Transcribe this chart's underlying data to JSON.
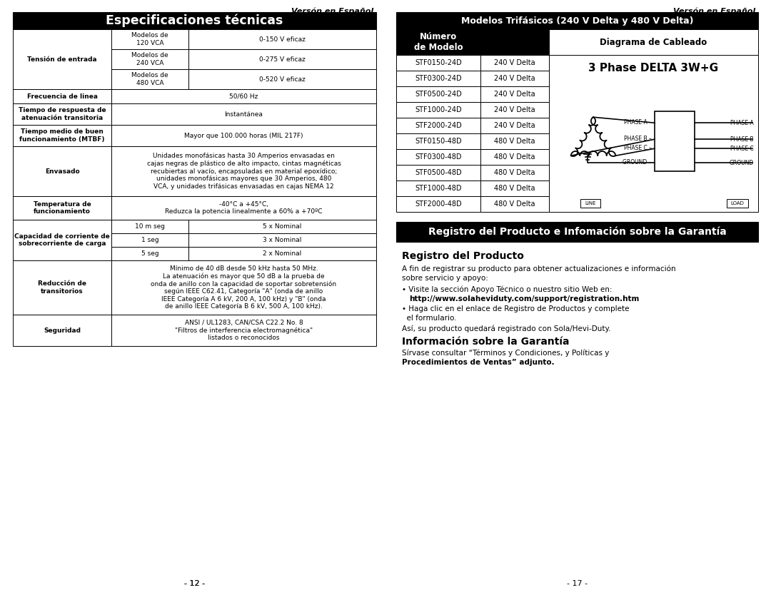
{
  "page_bg": "#ffffff",
  "left_header_italic": "Versón en Español",
  "right_header_italic": "Versón en Español",
  "left_title": "Especificaciones técnicas",
  "right_table_title": "Modelos Trifásicos (240 V Delta y 480 V Delta)",
  "right_col1_header": "Número\nde Modelo",
  "right_col3_header": "Diagrama de Cableado",
  "right_table_rows": [
    [
      "STF0150-24D",
      "240 V Delta"
    ],
    [
      "STF0300-24D",
      "240 V Delta"
    ],
    [
      "STF0500-24D",
      "240 V Delta"
    ],
    [
      "STF1000-24D",
      "240 V Delta"
    ],
    [
      "STF2000-24D",
      "240 V Delta"
    ],
    [
      "STF0150-48D",
      "480 V Delta"
    ],
    [
      "STF0300-48D",
      "480 V Delta"
    ],
    [
      "STF0500-48D",
      "480 V Delta"
    ],
    [
      "STF1000-48D",
      "480 V Delta"
    ],
    [
      "STF2000-48D",
      "480 V Delta"
    ]
  ],
  "diagram_title": "3 Phase DELTA 3W+G",
  "bottom_banner_title": "Registro del Producto e Infomación sobre la Garantía",
  "registro_title": "Registro del Producto",
  "registro_text1": "A fin de registrar su producto para obtener actualizaciones e información",
  "registro_text2": "sobre servicio y apoyo:",
  "bullet1a": "• Visite la sección Apoyo Técnico o nuestro sitio Web en:",
  "bullet1b": "http://www.solaheviduty.com/support/registration.htm",
  "bullet2a": "• Haga clic en el enlace de Registro de Productos y complete",
  "bullet2b": "  el formulario.",
  "asi_text": "Así, su producto quedará registrado con Sola/Hevi-Duty.",
  "garantia_title": "Información sobre la Garantía",
  "garantia_text1": "Sírvase consultar “Términos y Condiciones, y Políticas y",
  "garantia_text2": "Procedimientos de Ventas” adjunto.",
  "page_left": "- 12 -",
  "page_right": "- 17 -"
}
